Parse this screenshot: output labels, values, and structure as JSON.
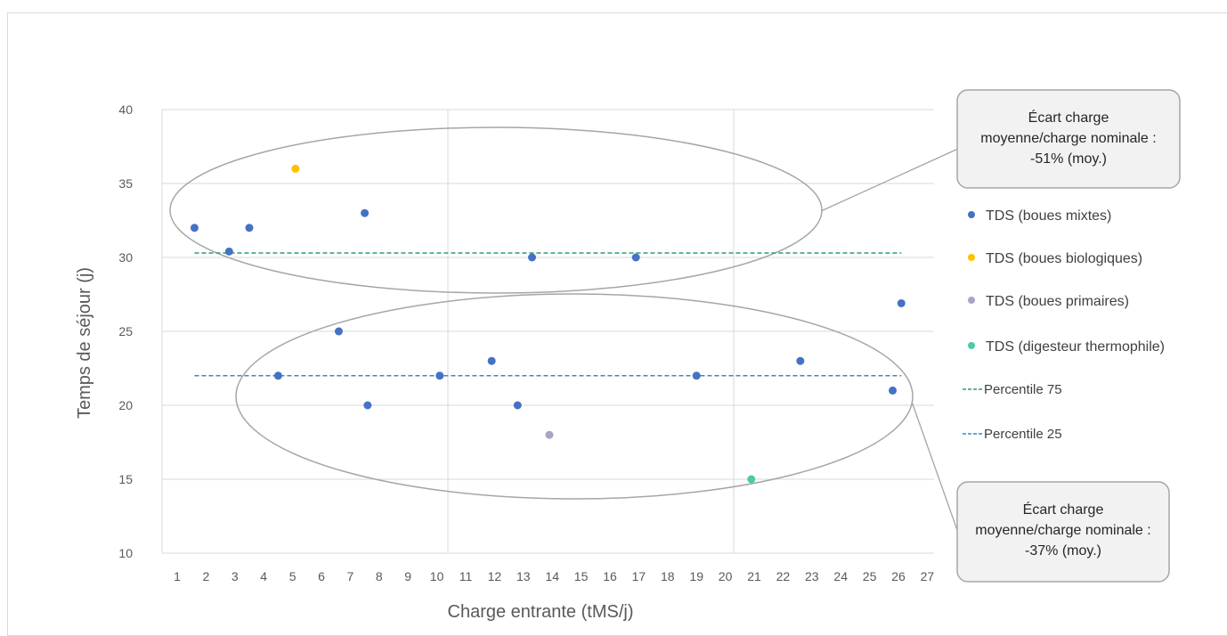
{
  "chart_data": {
    "type": "scatter",
    "xlabel": "Charge entrante (tMS/j)",
    "ylabel": "Temps de séjour (j)",
    "x_tick_labels": [
      "1",
      "2",
      "3",
      "4",
      "5",
      "6",
      "7",
      "8",
      "9",
      "10",
      "11",
      "12",
      "13",
      "14",
      "15",
      "16",
      "17",
      "18",
      "19",
      "20",
      "21",
      "22",
      "23",
      "24",
      "25",
      "26",
      "27"
    ],
    "ylim": [
      10,
      40
    ],
    "y_ticks": [
      10,
      15,
      20,
      25,
      30,
      35,
      40
    ],
    "series": [
      {
        "name": "TDS (boues mixtes)",
        "color": "#4472c4",
        "points": [
          {
            "x": 1.6,
            "y": 32
          },
          {
            "x": 2.8,
            "y": 30.4
          },
          {
            "x": 3.5,
            "y": 32
          },
          {
            "x": 4.5,
            "y": 22
          },
          {
            "x": 6.6,
            "y": 25
          },
          {
            "x": 7.5,
            "y": 33
          },
          {
            "x": 7.6,
            "y": 20
          },
          {
            "x": 10.1,
            "y": 22
          },
          {
            "x": 11.9,
            "y": 23
          },
          {
            "x": 12.8,
            "y": 20
          },
          {
            "x": 13.3,
            "y": 30
          },
          {
            "x": 16.9,
            "y": 30
          },
          {
            "x": 19.0,
            "y": 22
          },
          {
            "x": 22.6,
            "y": 23
          },
          {
            "x": 25.8,
            "y": 21
          },
          {
            "x": 26.1,
            "y": 26.9
          }
        ]
      },
      {
        "name": "TDS (boues biologiques)",
        "color": "#ffc000",
        "points": [
          {
            "x": 5.1,
            "y": 36
          }
        ]
      },
      {
        "name": "TDS (boues primaires)",
        "color": "#a5a5c8",
        "points": [
          {
            "x": 13.9,
            "y": 18
          }
        ]
      },
      {
        "name": "TDS (digesteur thermophile)",
        "color": "#4ec9a8",
        "points": [
          {
            "x": 20.9,
            "y": 15
          }
        ]
      }
    ],
    "reference_lines": [
      {
        "name": "Percentile 75",
        "y": 30.3,
        "x_start": 1.6,
        "x_end": 26.1,
        "color": "#2e9e6a"
      },
      {
        "name": "Percentile 25",
        "y": 22,
        "x_start": 1.6,
        "x_end": 26.1,
        "color": "#2f8fbf"
      }
    ],
    "annotations": [
      {
        "name": "upper-cluster",
        "lines": [
          "Écart charge",
          "moyenne/charge nominale :",
          "-51% (moy.)"
        ]
      },
      {
        "name": "lower-cluster",
        "lines": [
          "Écart charge",
          "moyenne/charge nominale :",
          "-37% (moy.)"
        ]
      }
    ],
    "legend_position": "right",
    "grid": true
  },
  "colors": {
    "grid": "#d9d9d9",
    "ellipse": "#a6a6a6",
    "callout_fill": "#f2f2f2",
    "callout_stroke": "#a6a6a6"
  }
}
